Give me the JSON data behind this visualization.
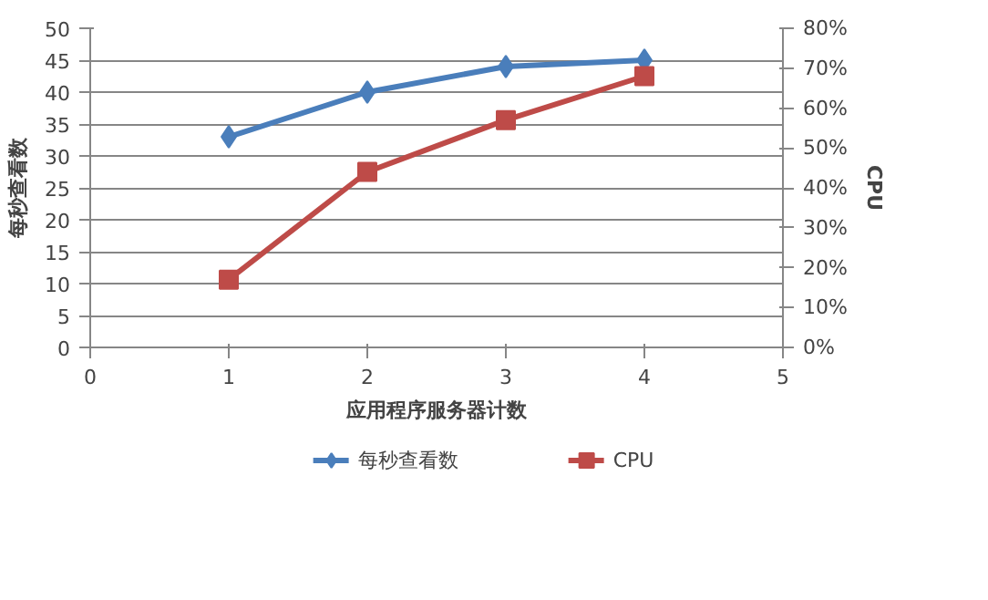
{
  "chart_data": {
    "type": "line",
    "xlabel": "应用程序服务器计数",
    "ylabel": "每秒查看数",
    "y2label": "CPU",
    "x": [
      1,
      2,
      3,
      4
    ],
    "series": [
      {
        "name": "每秒查看数",
        "color": "#4a7ebb",
        "values": [
          33,
          40,
          44,
          45
        ],
        "marker": "diamond"
      },
      {
        "name": "CPU",
        "color": "#be4b48",
        "values": [
          17,
          44,
          57,
          68
        ],
        "marker": "square",
        "axis": "y2"
      }
    ],
    "xlim": [
      0,
      5
    ],
    "xticks": [
      0,
      1,
      2,
      3,
      4,
      5
    ],
    "ylim": [
      0,
      50
    ],
    "yticks": [
      0,
      5,
      10,
      15,
      20,
      25,
      30,
      35,
      40,
      45,
      50
    ],
    "y2lim": [
      0,
      80
    ],
    "y2ticks": [
      {
        "value": 0,
        "label": "0%"
      },
      {
        "value": 10,
        "label": "10%"
      },
      {
        "value": 20,
        "label": "20%"
      },
      {
        "value": 30,
        "label": "30%"
      },
      {
        "value": 40,
        "label": "40%"
      },
      {
        "value": 50,
        "label": "50%"
      },
      {
        "value": 60,
        "label": "60%"
      },
      {
        "value": 70,
        "label": "70%"
      },
      {
        "value": 80,
        "label": "80%"
      }
    ],
    "grid": "y",
    "legend": "bottom",
    "line_style": "solid"
  }
}
